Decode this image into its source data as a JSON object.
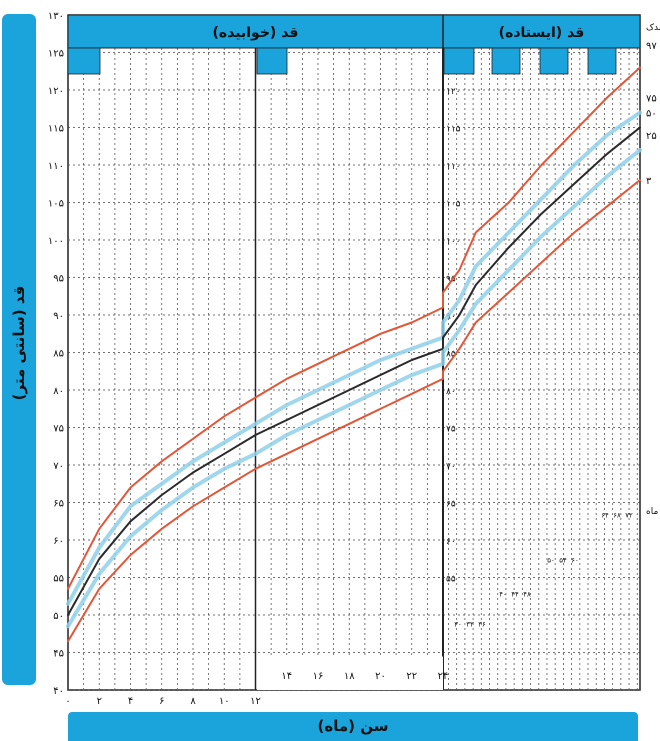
{
  "chart_data": {
    "type": "line",
    "ylabel": "قد (سانتی متر)",
    "xlabel": "سن (ماه)",
    "panels": [
      {
        "label": "قد (خوابیده)",
        "x_range": [
          0,
          24
        ]
      },
      {
        "label": "قد (ایستاده)",
        "x_range": [
          24,
          60
        ]
      }
    ],
    "ylim": [
      40,
      130
    ],
    "y_ticks": [
      "۴۰",
      "۴۵",
      "۵۰",
      "۵۵",
      "۶۰",
      "۶۵",
      "۷۰",
      "۷۵",
      "۸۰",
      "۸۵",
      "۹۰",
      "۹۵",
      "۱۰۰",
      "۱۰۵",
      "۱۱۰",
      "۱۱۵",
      "۱۲۰",
      "۱۲۵",
      "۱۳۰"
    ],
    "y_ticks_standing": [
      "۵۵",
      "۶۰",
      "۶۵",
      "۷۰",
      "۷۵",
      "۸۰",
      "۸۵",
      "۹۰",
      "۹۵",
      "۱۰۰",
      "۱۰۵",
      "۱۱۰",
      "۱۱۵",
      "۱۲۰"
    ],
    "x_ticks_lying": [
      "۰",
      "۲",
      "۴",
      "۶",
      "۸",
      "۱۰",
      "۱۲"
    ],
    "x_ticks_lying_row2": [
      "۱۴",
      "۱۶",
      "۱۸",
      "۲۰",
      "۲۲",
      "۲۴"
    ],
    "x_ticks_standing_groups": [
      [
        "۳۰",
        "۳۳",
        "۳۶"
      ],
      [
        "۴۰",
        "۴۴",
        "۴۸"
      ],
      [
        "۵۰",
        "۵۴",
        "۶۰"
      ],
      [
        "۶۴",
        "۶۸",
        "۷۲"
      ]
    ],
    "percentile_header": "صدک",
    "month_marker": "ماه",
    "percentile_labels": [
      "۹۷",
      "۷۵",
      "۵۰",
      "۲۵",
      "۳"
    ],
    "series": [
      {
        "name": "۹۷",
        "color": "#e0573a",
        "x": [
          0,
          2,
          4,
          6,
          8,
          10,
          12,
          14,
          16,
          18,
          20,
          22,
          24,
          24,
          27,
          30,
          36,
          42,
          48,
          54,
          60
        ],
        "y": [
          53.5,
          61.5,
          67,
          70.5,
          73.5,
          76.5,
          79,
          81.5,
          83.5,
          85.5,
          87.5,
          89,
          91,
          93,
          96,
          101,
          105,
          110,
          114.5,
          119,
          123
        ]
      },
      {
        "name": "۷۵",
        "color": "#8fd0ea",
        "x": [
          0,
          2,
          4,
          6,
          8,
          10,
          12,
          14,
          16,
          18,
          20,
          22,
          24,
          24,
          27,
          30,
          36,
          42,
          48,
          54,
          60
        ],
        "y": [
          51.5,
          59,
          64.5,
          67.5,
          70.5,
          73,
          75.5,
          78,
          80,
          82,
          84,
          85.5,
          87,
          89,
          92,
          96.5,
          101,
          105.5,
          110,
          114,
          117
        ]
      },
      {
        "name": "۵۰",
        "color": "#2a2a2a",
        "x": [
          0,
          2,
          4,
          6,
          8,
          10,
          12,
          14,
          16,
          18,
          20,
          22,
          24,
          24,
          27,
          30,
          36,
          42,
          48,
          54,
          60
        ],
        "y": [
          50,
          57.5,
          62.5,
          66,
          69,
          71.5,
          74,
          76,
          78,
          80,
          82,
          84,
          85.5,
          87,
          90,
          94,
          99,
          103.5,
          107.5,
          111.5,
          115
        ]
      },
      {
        "name": "۲۵",
        "color": "#8fd0ea",
        "x": [
          0,
          2,
          4,
          6,
          8,
          10,
          12,
          14,
          16,
          18,
          20,
          22,
          24,
          24,
          27,
          30,
          36,
          42,
          48,
          54,
          60
        ],
        "y": [
          48.5,
          55.5,
          60.5,
          64,
          67,
          69.5,
          71.5,
          74,
          76,
          78,
          80,
          82,
          83.5,
          85,
          88,
          91.5,
          96,
          100.5,
          104.5,
          108.5,
          112
        ]
      },
      {
        "name": "۳",
        "color": "#e0573a",
        "x": [
          0,
          2,
          4,
          6,
          8,
          10,
          12,
          14,
          16,
          18,
          20,
          22,
          24,
          24,
          27,
          30,
          36,
          42,
          48,
          54,
          60
        ],
        "y": [
          46.5,
          53.5,
          58,
          61.5,
          64.5,
          67,
          69.5,
          71.5,
          73.5,
          75.5,
          77.5,
          79.5,
          81.5,
          82.5,
          85.5,
          89,
          93,
          97,
          101,
          104.5,
          108
        ]
      }
    ]
  }
}
